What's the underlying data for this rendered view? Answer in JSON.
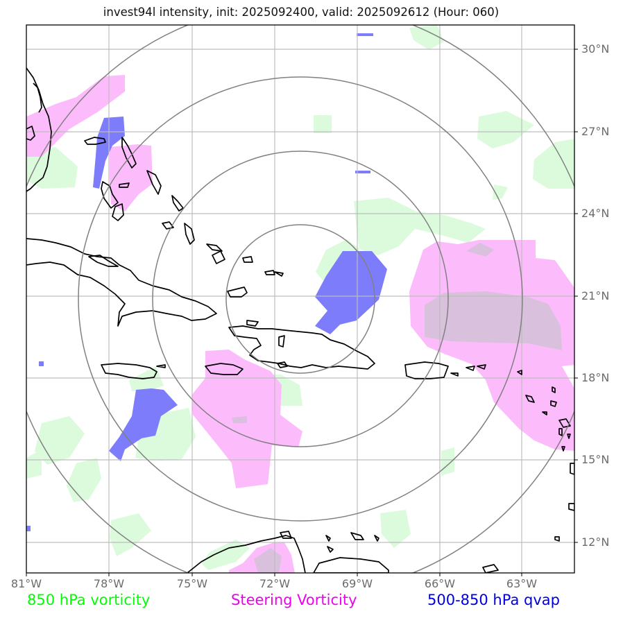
{
  "title": "invest94l intensity, init: 2025092400, valid: 2025092612 (Hour: 060)",
  "x_ticks": [
    "81°W",
    "78°W",
    "75°W",
    "72°W",
    "69°W",
    "66°W",
    "63°W"
  ],
  "y_ticks": [
    "30°N",
    "27°N",
    "24°N",
    "21°N",
    "18°N",
    "15°N",
    "12°N"
  ],
  "legend": {
    "vort850": {
      "label": "850 hPa vorticity",
      "color": "#00ff00"
    },
    "steering": {
      "label": "Steering Vorticity",
      "color": "#ee00ee"
    },
    "qvap": {
      "label": "500-850 hPa qvap",
      "color": "#0000dd"
    }
  },
  "layers": {
    "vort850_fill": "#dcfbdc",
    "steering_fill": "#fcbcfc",
    "qvap_fill": "#7d7dfb",
    "overlap_fill": "#d9c0dd"
  },
  "rings_center": {
    "lon": "71°W",
    "lat": "21°N"
  }
}
